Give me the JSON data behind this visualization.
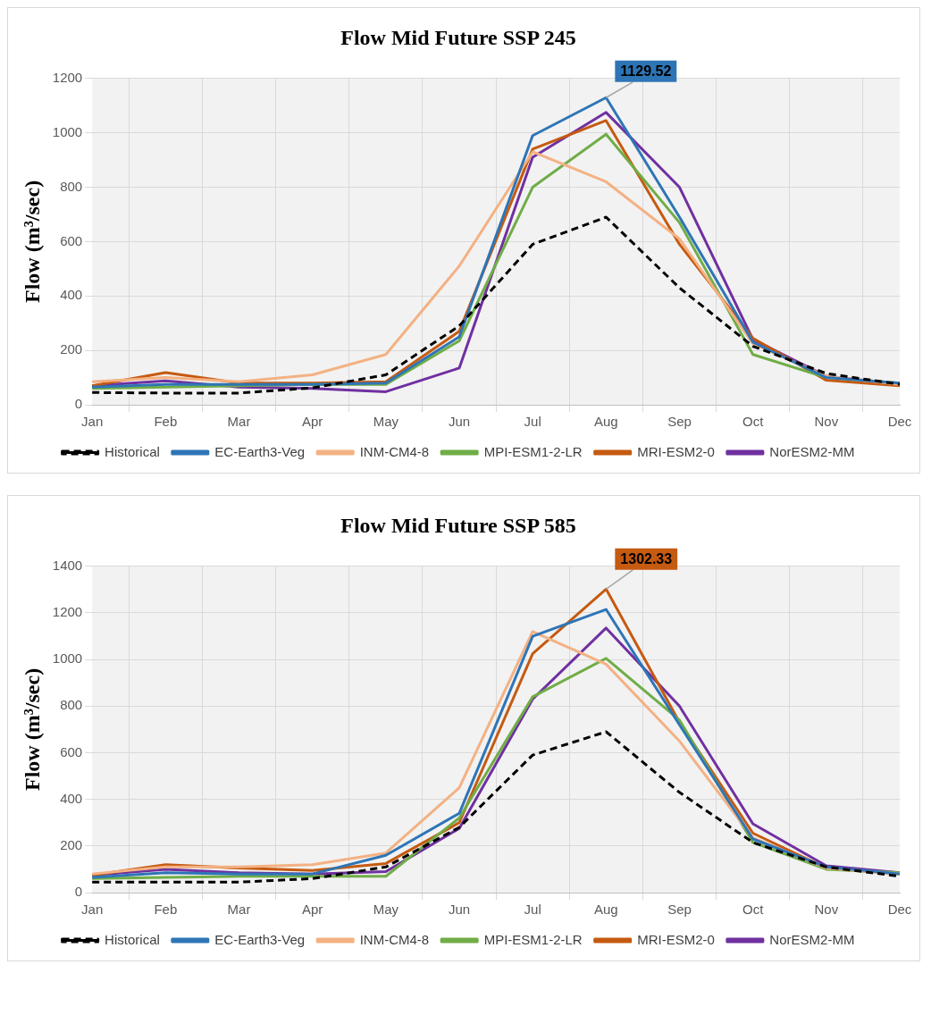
{
  "chart_data": [
    {
      "type": "line",
      "title": "Flow Mid Future SSP 245",
      "ylabel": "Flow (m³/sec)",
      "categories": [
        "Jan",
        "Feb",
        "Mar",
        "Apr",
        "May",
        "Jun",
        "Jul",
        "Aug",
        "Sep",
        "Oct",
        "Nov",
        "Dec"
      ],
      "ylim": [
        0,
        1200
      ],
      "yticks": [
        0,
        200,
        400,
        600,
        800,
        1000,
        1200
      ],
      "grid": true,
      "legend": "bottom",
      "marker": "none",
      "series": [
        {
          "name": "Historical",
          "color": "#000000",
          "line_style": "dashed",
          "values": [
            45,
            43,
            43,
            62,
            110,
            290,
            590,
            690,
            430,
            215,
            115,
            75
          ]
        },
        {
          "name": "EC-Earth3-Veg",
          "color": "#2e75b6",
          "values": [
            65,
            75,
            75,
            75,
            80,
            250,
            990,
            1129.52,
            690,
            230,
            100,
            80
          ]
        },
        {
          "name": "INM-CM4-8",
          "color": "#f4b183",
          "values": [
            85,
            100,
            85,
            110,
            185,
            510,
            930,
            820,
            610,
            225,
            105,
            75
          ]
        },
        {
          "name": "MPI-ESM1-2-LR",
          "color": "#70ad47",
          "values": [
            60,
            65,
            70,
            75,
            75,
            235,
            800,
            995,
            670,
            185,
            100,
            80
          ]
        },
        {
          "name": "MRI-ESM2-0",
          "color": "#c55a11",
          "values": [
            70,
            118,
            80,
            80,
            85,
            270,
            940,
            1045,
            590,
            245,
            90,
            70
          ]
        },
        {
          "name": "NorESM2-MM",
          "color": "#7030a0",
          "values": [
            70,
            88,
            65,
            60,
            48,
            135,
            910,
            1075,
            800,
            240,
            105,
            75
          ]
        }
      ],
      "annotations": [
        {
          "text": "1129.52",
          "x": "Aug",
          "y": 1129.52
        }
      ]
    },
    {
      "type": "line",
      "title": "Flow Mid Future SSP 585",
      "ylabel": "Flow (m³/sec)",
      "categories": [
        "Jan",
        "Feb",
        "Mar",
        "Apr",
        "May",
        "Jun",
        "Jul",
        "Aug",
        "Sep",
        "Oct",
        "Nov",
        "Dec"
      ],
      "ylim": [
        0,
        1400
      ],
      "yticks": [
        0,
        200,
        400,
        600,
        800,
        1000,
        1200,
        1400
      ],
      "grid": true,
      "legend": "bottom",
      "marker": "none",
      "series": [
        {
          "name": "Historical",
          "color": "#000000",
          "line_style": "dashed",
          "values": [
            45,
            45,
            45,
            60,
            110,
            280,
            590,
            690,
            430,
            215,
            110,
            70
          ]
        },
        {
          "name": "EC-Earth3-Veg",
          "color": "#2e75b6",
          "values": [
            65,
            85,
            80,
            80,
            160,
            340,
            1100,
            1215,
            720,
            230,
            110,
            80
          ]
        },
        {
          "name": "INM-CM4-8",
          "color": "#f4b183",
          "values": [
            80,
            110,
            110,
            120,
            170,
            450,
            1120,
            980,
            650,
            235,
            105,
            80
          ]
        },
        {
          "name": "MPI-ESM1-2-LR",
          "color": "#70ad47",
          "values": [
            60,
            65,
            70,
            70,
            70,
            320,
            840,
            1005,
            740,
            215,
            100,
            85
          ]
        },
        {
          "name": "MRI-ESM2-0",
          "color": "#c55a11",
          "values": [
            75,
            120,
            105,
            95,
            125,
            300,
            1025,
            1302.33,
            730,
            255,
            105,
            80
          ]
        },
        {
          "name": "NorESM2-MM",
          "color": "#7030a0",
          "values": [
            75,
            100,
            85,
            80,
            90,
            275,
            830,
            1135,
            800,
            295,
            115,
            85
          ]
        }
      ],
      "annotations": [
        {
          "text": "1302.33",
          "x": "Aug",
          "y": 1302.33
        }
      ]
    }
  ]
}
